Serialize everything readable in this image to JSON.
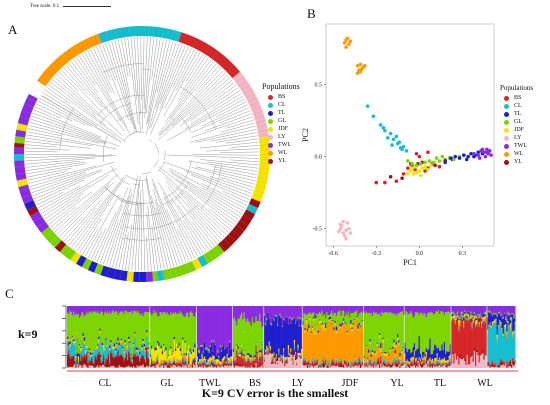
{
  "panels": {
    "a": "A",
    "b": "B",
    "c": "C"
  },
  "tree_scale": "Tree scale: 0.1",
  "populations": [
    {
      "code": "BS",
      "color": "#d62728"
    },
    {
      "code": "CL",
      "color": "#17becf"
    },
    {
      "code": "TL",
      "color": "#1f1fcf"
    },
    {
      "code": "GL",
      "color": "#7cd400"
    },
    {
      "code": "JDF",
      "color": "#f5e400"
    },
    {
      "code": "LY",
      "color": "#f4b6c2"
    },
    {
      "code": "TWL",
      "color": "#8a2be2"
    },
    {
      "code": "WL",
      "color": "#ff9900"
    },
    {
      "code": "YL",
      "color": "#a01010"
    }
  ],
  "legend_title_a": "Populations",
  "legend_title_b": "Populations",
  "chart_data": [
    {
      "type": "scatter",
      "panel": "B",
      "xlabel": "PC1",
      "ylabel": "PC2",
      "xticks": [
        "-0.6",
        "-0.3",
        "0.0",
        "0.3"
      ],
      "yticks": [
        "0.5",
        "0.0",
        "-0.5"
      ],
      "xlim": [
        -0.65,
        0.52
      ],
      "ylim": [
        -0.62,
        0.92
      ],
      "grid": false,
      "legend": "right",
      "clusters": [
        {
          "name": "WL",
          "points": [
            [
              -0.51,
              0.81
            ],
            [
              -0.52,
              0.79
            ],
            [
              -0.49,
              0.78
            ],
            [
              -0.5,
              0.82
            ],
            [
              -0.48,
              0.8
            ],
            [
              -0.51,
              0.76
            ],
            [
              -0.43,
              0.63
            ],
            [
              -0.42,
              0.6
            ],
            [
              -0.4,
              0.61
            ],
            [
              -0.41,
              0.64
            ],
            [
              -0.39,
              0.62
            ],
            [
              -0.43,
              0.58
            ],
            [
              -0.41,
              0.59
            ],
            [
              -0.38,
              0.63
            ]
          ]
        },
        {
          "name": "LY",
          "points": [
            [
              -0.55,
              -0.5
            ],
            [
              -0.53,
              -0.53
            ],
            [
              -0.51,
              -0.51
            ],
            [
              -0.54,
              -0.48
            ],
            [
              -0.5,
              -0.46
            ],
            [
              -0.52,
              -0.55
            ],
            [
              -0.56,
              -0.52
            ],
            [
              -0.49,
              -0.5
            ],
            [
              -0.53,
              -0.45
            ],
            [
              -0.51,
              -0.57
            ],
            [
              -0.48,
              -0.53
            ],
            [
              -0.55,
              -0.47
            ]
          ]
        },
        {
          "name": "CL",
          "points": [
            [
              -0.36,
              0.35
            ],
            [
              -0.32,
              0.28
            ],
            [
              -0.27,
              0.22
            ],
            [
              -0.24,
              0.18
            ],
            [
              -0.2,
              0.16
            ],
            [
              -0.18,
              0.12
            ],
            [
              -0.15,
              0.09
            ],
            [
              -0.22,
              0.13
            ],
            [
              -0.13,
              0.06
            ],
            [
              -0.11,
              0.07
            ],
            [
              -0.19,
              0.08
            ],
            [
              -0.09,
              0.04
            ],
            [
              -0.16,
              0.14
            ],
            [
              -0.25,
              0.2
            ],
            [
              -0.14,
              0.1
            ],
            [
              -0.12,
              0.05
            ]
          ]
        },
        {
          "name": "BS",
          "points": [
            [
              -0.3,
              -0.18
            ],
            [
              -0.24,
              -0.18
            ],
            [
              -0.16,
              -0.17
            ],
            [
              -0.11,
              -0.12
            ],
            [
              -0.06,
              -0.05
            ],
            [
              -0.03,
              -0.09
            ],
            [
              0.0,
              0.0
            ],
            [
              0.04,
              -0.1
            ],
            [
              0.09,
              -0.05
            ],
            [
              0.14,
              -0.07
            ],
            [
              -0.08,
              -0.08
            ],
            [
              -0.02,
              0.02
            ],
            [
              0.06,
              0.03
            ]
          ]
        },
        {
          "name": "YL",
          "points": [
            [
              -0.2,
              -0.14
            ],
            [
              -0.12,
              -0.15
            ],
            [
              -0.05,
              -0.06
            ],
            [
              -0.01,
              -0.05
            ],
            [
              0.02,
              -0.04
            ],
            [
              0.06,
              -0.08
            ],
            [
              0.11,
              -0.06
            ],
            [
              0.18,
              -0.04
            ],
            [
              0.23,
              -0.02
            ]
          ]
        },
        {
          "name": "JDF",
          "points": [
            [
              -0.08,
              -0.12
            ],
            [
              -0.06,
              -0.1
            ],
            [
              -0.04,
              -0.12
            ],
            [
              -0.02,
              -0.11
            ],
            [
              0.0,
              -0.1
            ],
            [
              0.02,
              -0.08
            ],
            [
              0.04,
              -0.07
            ],
            [
              0.06,
              -0.09
            ],
            [
              0.08,
              -0.06
            ],
            [
              -0.05,
              -0.08
            ],
            [
              0.01,
              -0.13
            ],
            [
              -0.03,
              -0.07
            ]
          ]
        },
        {
          "name": "GL",
          "points": [
            [
              -0.08,
              -0.03
            ],
            [
              -0.05,
              -0.05
            ],
            [
              -0.02,
              -0.06
            ],
            [
              0.01,
              -0.05
            ],
            [
              0.04,
              -0.04
            ],
            [
              0.07,
              -0.03
            ],
            [
              0.1,
              -0.04
            ],
            [
              0.14,
              -0.03
            ],
            [
              0.18,
              -0.02
            ],
            [
              0.21,
              -0.01
            ],
            [
              0.24,
              -0.02
            ],
            [
              0.28,
              0.0
            ],
            [
              0.31,
              0.01
            ],
            [
              0.12,
              -0.01
            ],
            [
              0.16,
              0.0
            ]
          ]
        },
        {
          "name": "TL",
          "points": [
            [
              0.18,
              -0.03
            ],
            [
              0.22,
              -0.01
            ],
            [
              0.25,
              0.0
            ],
            [
              0.28,
              -0.01
            ],
            [
              0.31,
              0.01
            ],
            [
              0.34,
              0.0
            ],
            [
              0.36,
              0.02
            ],
            [
              0.39,
              0.01
            ],
            [
              0.41,
              0.03
            ],
            [
              0.44,
              0.02
            ],
            [
              0.33,
              -0.02
            ],
            [
              0.38,
              0.0
            ]
          ]
        },
        {
          "name": "TWL",
          "points": [
            [
              0.38,
              0.02
            ],
            [
              0.41,
              0.01
            ],
            [
              0.43,
              0.04
            ],
            [
              0.45,
              0.03
            ],
            [
              0.46,
              0.0
            ],
            [
              0.47,
              0.03
            ],
            [
              0.48,
              0.02
            ],
            [
              0.49,
              0.04
            ],
            [
              0.44,
              0.05
            ],
            [
              0.42,
              -0.01
            ],
            [
              0.47,
              0.05
            ],
            [
              0.5,
              0.01
            ]
          ]
        }
      ]
    },
    {
      "type": "bar",
      "panel": "C",
      "k_label": "k=9",
      "stacked": true,
      "groups": [
        "CL",
        "GL",
        "TWL",
        "BS",
        "LY",
        "JDF",
        "YL",
        "TL",
        "WL"
      ],
      "caption": "K=9 CV error is the smallest"
    }
  ]
}
